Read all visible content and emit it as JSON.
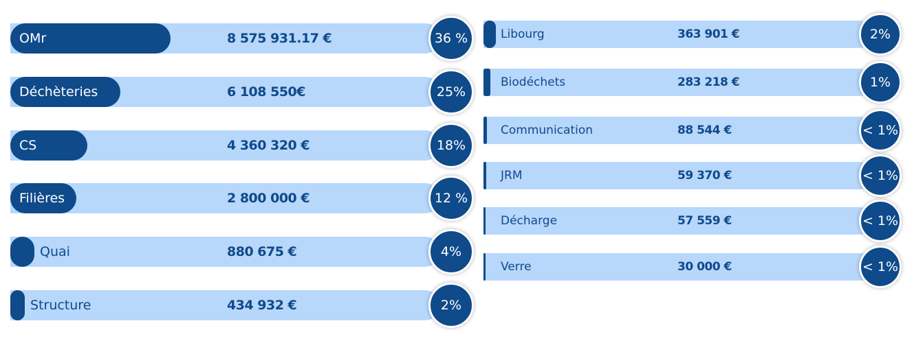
{
  "left": [
    {
      "label": "OMr",
      "amount": "8 575 931.17 €",
      "percent": "36 %"
    },
    {
      "label": "Déchèteries",
      "amount": "6 108 550€",
      "percent": "25%"
    },
    {
      "label": "CS",
      "amount": "4 360 320 €",
      "percent": "18%"
    },
    {
      "label": "Filières",
      "amount": "2 800 000 €",
      "percent": "12 %"
    },
    {
      "label": "Quai",
      "amount": "880 675 €",
      "percent": "4%"
    },
    {
      "label": "Structure",
      "amount": "434 932 €",
      "percent": "2%"
    }
  ],
  "right": [
    {
      "label": "Libourg",
      "amount": "363 901 €",
      "percent": "2%"
    },
    {
      "label": "Biodéchets",
      "amount": "283 218 €",
      "percent": "1%"
    },
    {
      "label": "Communication",
      "amount": "88 544 €",
      "percent": "< 1%"
    },
    {
      "label": "JRM",
      "amount": "59 370 €",
      "percent": "< 1%"
    },
    {
      "label": "Décharge",
      "amount": "57 559 €",
      "percent": "< 1%"
    },
    {
      "label": "Verre",
      "amount": "30 000 €",
      "percent": "< 1%"
    }
  ]
}
